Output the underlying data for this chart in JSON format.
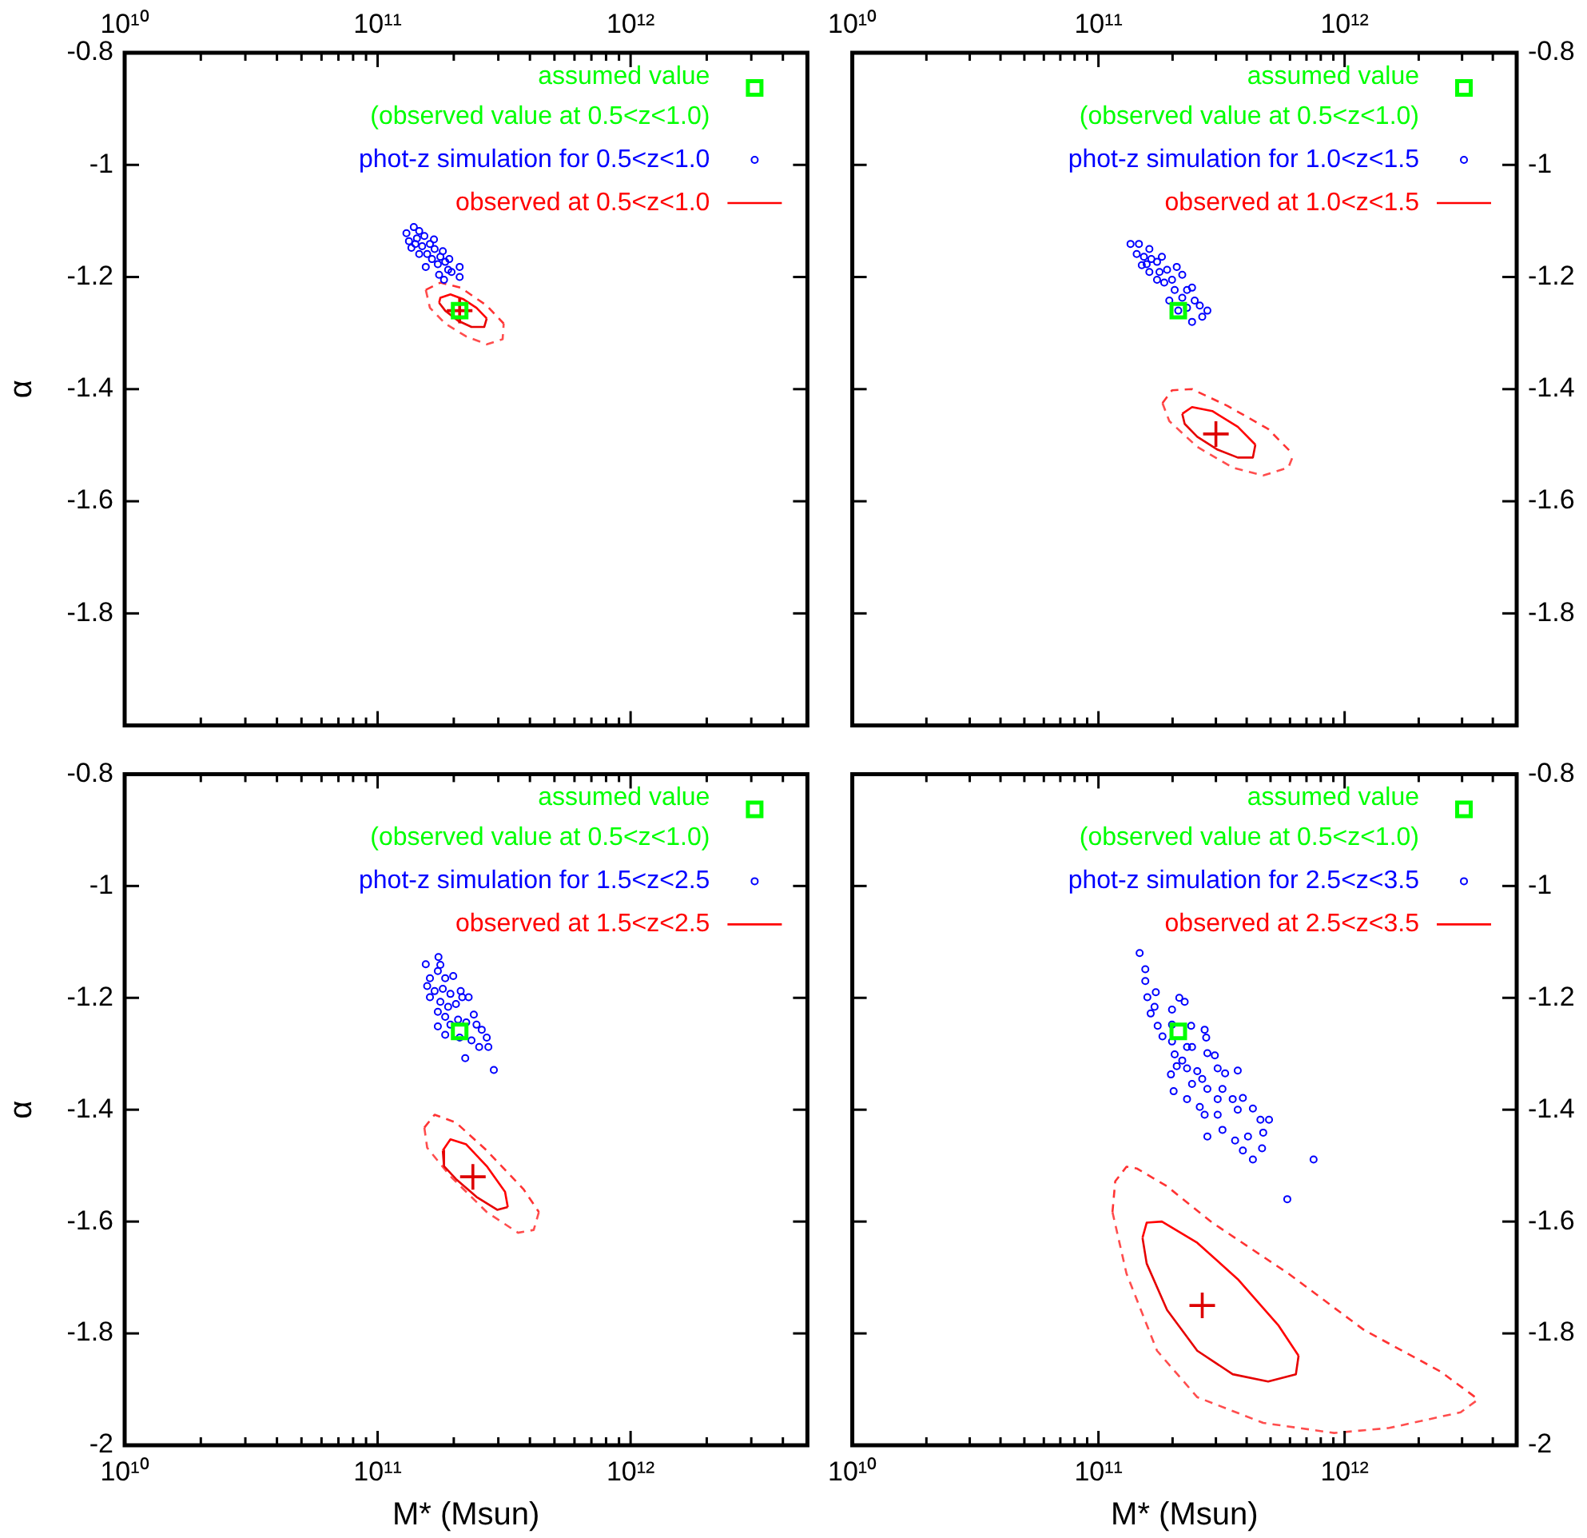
{
  "chart_data": [
    {
      "type": "scatter",
      "ylabel": "α",
      "log": "x",
      "legend": "top right",
      "xlim": [
        10000000000.0,
        5000000000000.0
      ],
      "ylim": [
        -2,
        -0.8
      ],
      "xticks": [
        {
          "value": 10000000000.0,
          "label": "10¹⁰"
        },
        {
          "value": 20000000000.0,
          "label": null
        },
        {
          "value": 30000000000.0,
          "label": null
        },
        {
          "value": 40000000000.0,
          "label": null
        },
        {
          "value": 50000000000.0,
          "label": null
        },
        {
          "value": 60000000000.0,
          "label": null
        },
        {
          "value": 70000000000.0,
          "label": null
        },
        {
          "value": 80000000000.0,
          "label": null
        },
        {
          "value": 90000000000.0,
          "label": null
        },
        {
          "value": 100000000000.0,
          "label": "10¹¹"
        },
        {
          "value": 200000000000.0,
          "label": null
        },
        {
          "value": 300000000000.0,
          "label": null
        },
        {
          "value": 400000000000.0,
          "label": null
        },
        {
          "value": 500000000000.0,
          "label": null
        },
        {
          "value": 600000000000.0,
          "label": null
        },
        {
          "value": 700000000000.0,
          "label": null
        },
        {
          "value": 800000000000.0,
          "label": null
        },
        {
          "value": 900000000000.0,
          "label": null
        },
        {
          "value": 1000000000000.0,
          "label": "10¹²"
        },
        {
          "value": 2000000000000.0,
          "label": null
        },
        {
          "value": 3000000000000.0,
          "label": null
        },
        {
          "value": 4000000000000.0,
          "label": null
        }
      ],
      "yticks": [
        -0.8,
        -1,
        -1.2,
        -1.4,
        -1.6,
        -1.8,
        {
          "value": -2,
          "label": null
        }
      ],
      "series": [
        {
          "name": "assumed value\n(observed value at 0.5<z<1.0)",
          "type": "scatter",
          "marker": "square",
          "color": "#00ff00",
          "x": [
            211000000000.0
          ],
          "values": [
            -1.26
          ]
        },
        {
          "name": "phot-z simulation for 0.5<z<1.0",
          "type": "scatter",
          "marker": "circle",
          "color": "#0000ff",
          "x": [
            130000000000.0,
            139000000000.0,
            146000000000.0,
            133000000000.0,
            143000000000.0,
            153000000000.0,
            150000000000.0,
            161000000000.0,
            136000000000.0,
            157000000000.0,
            168000000000.0,
            164000000000.0,
            177000000000.0,
            173000000000.0,
            181000000000.0,
            185000000000.0,
            190000000000.0,
            183000000000.0,
            196000000000.0,
            211000000000.0,
            211000000000.0,
            146000000000.0,
            155000000000.0,
            175000000000.0,
            192000000000.0,
            167000000000.0,
            141000000000.0
          ],
          "values": [
            -1.122,
            -1.111,
            -1.118,
            -1.136,
            -1.131,
            -1.127,
            -1.145,
            -1.141,
            -1.148,
            -1.159,
            -1.15,
            -1.168,
            -1.164,
            -1.177,
            -1.154,
            -1.173,
            -1.187,
            -1.205,
            -1.191,
            -1.2,
            -1.182,
            -1.159,
            -1.182,
            -1.196,
            -1.168,
            -1.133,
            -1.141
          ]
        },
        {
          "name": "observed at 0.5<z<1.0",
          "type": "line",
          "line_style": "solid",
          "color": "#ff0000",
          "x": [
            175000000000.0,
            177000000000.0,
            194000000000.0,
            219000000000.0,
            246000000000.0,
            270000000000.0
          ],
          "values": [
            -1.246,
            -1.237,
            -1.231,
            -1.24,
            -1.255,
            -1.274
          ]
        },
        {
          "type": "line",
          "line_style": "solid",
          "color": "#e60000",
          "x": [
            175000000000.0,
            185000000000.0,
            208000000000.0,
            235000000000.0,
            264000000000.0,
            270000000000.0
          ],
          "values": [
            -1.246,
            -1.26,
            -1.278,
            -1.289,
            -1.289,
            -1.274
          ]
        },
        {
          "type": "line",
          "line_style": "dashed",
          "color": "#ff3333",
          "x": [
            155000000000.0,
            177000000000.0,
            213000000000.0,
            270000000000.0,
            315000000000.0
          ],
          "values": [
            -1.223,
            -1.21,
            -1.219,
            -1.251,
            -1.283
          ]
        },
        {
          "type": "line",
          "line_style": "dashed",
          "color": "#ff4d4d",
          "x": [
            155000000000.0,
            161000000000.0,
            185000000000.0,
            224000000000.0,
            270000000000.0,
            312000000000.0,
            315000000000.0
          ],
          "values": [
            -1.223,
            -1.255,
            -1.283,
            -1.306,
            -1.32,
            -1.311,
            -1.283
          ]
        },
        {
          "type": "scatter",
          "marker": "cross",
          "color": "#dd0000",
          "x": [
            211000000000.0
          ],
          "values": [
            -1.26
          ]
        }
      ]
    },
    {
      "type": "scatter",
      "log": "x",
      "legend": "top right",
      "xlim": [
        10000000000.0,
        5000000000000.0
      ],
      "ylim": [
        -2,
        -0.8
      ],
      "xticks": [
        {
          "value": 10000000000.0,
          "label": "10¹⁰"
        },
        {
          "value": 20000000000.0,
          "label": null
        },
        {
          "value": 30000000000.0,
          "label": null
        },
        {
          "value": 40000000000.0,
          "label": null
        },
        {
          "value": 50000000000.0,
          "label": null
        },
        {
          "value": 60000000000.0,
          "label": null
        },
        {
          "value": 70000000000.0,
          "label": null
        },
        {
          "value": 80000000000.0,
          "label": null
        },
        {
          "value": 90000000000.0,
          "label": null
        },
        {
          "value": 100000000000.0,
          "label": "10¹¹"
        },
        {
          "value": 200000000000.0,
          "label": null
        },
        {
          "value": 300000000000.0,
          "label": null
        },
        {
          "value": 400000000000.0,
          "label": null
        },
        {
          "value": 500000000000.0,
          "label": null
        },
        {
          "value": 600000000000.0,
          "label": null
        },
        {
          "value": 700000000000.0,
          "label": null
        },
        {
          "value": 800000000000.0,
          "label": null
        },
        {
          "value": 900000000000.0,
          "label": null
        },
        {
          "value": 1000000000000.0,
          "label": "10¹²"
        },
        {
          "value": 2000000000000.0,
          "label": null
        },
        {
          "value": 3000000000000.0,
          "label": null
        },
        {
          "value": 4000000000000.0,
          "label": null
        }
      ],
      "yticks": [
        -0.8,
        -1,
        -1.2,
        -1.4,
        -1.6,
        -1.8,
        {
          "value": -2,
          "label": null
        }
      ],
      "series": [
        {
          "name": "assumed value\n(observed value at 0.5<z<1.0)",
          "type": "scatter",
          "marker": "square",
          "color": "#00ff00",
          "x": [
            211000000000.0
          ],
          "values": [
            -1.26
          ]
        },
        {
          "name": "phot-z simulation for 1.0<z<1.5",
          "type": "scatter",
          "marker": "circle",
          "color": "#0000ff",
          "x": [
            135000000000.0,
            146000000000.0,
            143000000000.0,
            153000000000.0,
            161000000000.0,
            164000000000.0,
            150000000000.0,
            173000000000.0,
            181000000000.0,
            161000000000.0,
            177000000000.0,
            190000000000.0,
            208000000000.0,
            185000000000.0,
            199000000000.0,
            219000000000.0,
            173000000000.0,
            204000000000.0,
            229000000000.0,
            240000000000.0,
            219000000000.0,
            246000000000.0,
            229000000000.0,
            258000000000.0,
            277000000000.0,
            264000000000.0,
            240000000000.0,
            211000000000.0,
            194000000000.0,
            157000000000.0
          ],
          "values": [
            -1.141,
            -1.141,
            -1.159,
            -1.164,
            -1.15,
            -1.168,
            -1.179,
            -1.173,
            -1.164,
            -1.191,
            -1.191,
            -1.187,
            -1.182,
            -1.21,
            -1.205,
            -1.196,
            -1.205,
            -1.223,
            -1.223,
            -1.219,
            -1.237,
            -1.242,
            -1.255,
            -1.251,
            -1.26,
            -1.271,
            -1.28,
            -1.26,
            -1.242,
            -1.177
          ]
        },
        {
          "name": "observed at 1.0<z<1.5",
          "type": "line",
          "line_style": "solid",
          "color": "#ff0000",
          "x": [
            219000000000.0,
            240000000000.0,
            290000000000.0,
            368000000000.0,
            434000000000.0
          ],
          "values": [
            -1.444,
            -1.432,
            -1.439,
            -1.467,
            -1.499
          ]
        },
        {
          "type": "line",
          "line_style": "solid",
          "color": "#e60000",
          "x": [
            219000000000.0,
            224000000000.0,
            252000000000.0,
            305000000000.0,
            368000000000.0,
            424000000000.0,
            434000000000.0
          ],
          "values": [
            -1.444,
            -1.462,
            -1.485,
            -1.508,
            -1.522,
            -1.522,
            -1.499
          ]
        },
        {
          "type": "line",
          "line_style": "dashed",
          "color": "#ff3333",
          "x": [
            182000000000.0,
            199000000000.0,
            240000000000.0,
            335000000000.0,
            489000000000.0,
            620000000000.0
          ],
          "values": [
            -1.425,
            -1.402,
            -1.4,
            -1.43,
            -1.471,
            -1.517
          ]
        },
        {
          "type": "line",
          "line_style": "dashed",
          "color": "#ff4d4d",
          "x": [
            182000000000.0,
            194000000000.0,
            252000000000.0,
            351000000000.0,
            467000000000.0,
            591000000000.0,
            620000000000.0
          ],
          "values": [
            -1.425,
            -1.457,
            -1.503,
            -1.54,
            -1.554,
            -1.54,
            -1.517
          ]
        },
        {
          "type": "scatter",
          "marker": "cross",
          "color": "#dd0000",
          "x": [
            300000000000.0
          ],
          "values": [
            -1.48
          ]
        }
      ]
    },
    {
      "type": "scatter",
      "xlabel": "M* (Msun)",
      "ylabel": "α",
      "log": "x",
      "legend": "top right",
      "xlim": [
        10000000000.0,
        5000000000000.0
      ],
      "ylim": [
        -2,
        -0.8
      ],
      "xticks": [
        {
          "value": 10000000000.0,
          "label": "10¹⁰"
        },
        {
          "value": 20000000000.0,
          "label": null
        },
        {
          "value": 30000000000.0,
          "label": null
        },
        {
          "value": 40000000000.0,
          "label": null
        },
        {
          "value": 50000000000.0,
          "label": null
        },
        {
          "value": 60000000000.0,
          "label": null
        },
        {
          "value": 70000000000.0,
          "label": null
        },
        {
          "value": 80000000000.0,
          "label": null
        },
        {
          "value": 90000000000.0,
          "label": null
        },
        {
          "value": 100000000000.0,
          "label": "10¹¹"
        },
        {
          "value": 200000000000.0,
          "label": null
        },
        {
          "value": 300000000000.0,
          "label": null
        },
        {
          "value": 400000000000.0,
          "label": null
        },
        {
          "value": 500000000000.0,
          "label": null
        },
        {
          "value": 600000000000.0,
          "label": null
        },
        {
          "value": 700000000000.0,
          "label": null
        },
        {
          "value": 800000000000.0,
          "label": null
        },
        {
          "value": 900000000000.0,
          "label": null
        },
        {
          "value": 1000000000000.0,
          "label": "10¹²"
        },
        {
          "value": 2000000000000.0,
          "label": null
        },
        {
          "value": 3000000000000.0,
          "label": null
        },
        {
          "value": 4000000000000.0,
          "label": null
        }
      ],
      "yticks": [
        -0.8,
        -1,
        -1.2,
        -1.4,
        -1.6,
        -1.8,
        -2
      ],
      "series": [
        {
          "name": "assumed value\n(observed value at 0.5<z<1.0)",
          "type": "scatter",
          "marker": "square",
          "color": "#00ff00",
          "x": [
            211000000000.0
          ],
          "values": [
            -1.26
          ]
        },
        {
          "name": "phot-z simulation for 1.5<z<2.5",
          "type": "scatter",
          "marker": "circle",
          "color": "#0000ff",
          "x": [
            155000000000.0,
            174000000000.0,
            177000000000.0,
            173000000000.0,
            161000000000.0,
            185000000000.0,
            199000000000.0,
            157000000000.0,
            168000000000.0,
            181000000000.0,
            194000000000.0,
            213000000000.0,
            216000000000.0,
            229000000000.0,
            161000000000.0,
            177000000000.0,
            190000000000.0,
            204000000000.0,
            240000000000.0,
            173000000000.0,
            185000000000.0,
            173000000000.0,
            194000000000.0,
            208000000000.0,
            224000000000.0,
            246000000000.0,
            258000000000.0,
            270000000000.0,
            235000000000.0,
            252000000000.0,
            274000000000.0,
            222000000000.0,
            288000000000.0,
            211000000000.0,
            185000000000.0
          ],
          "values": [
            -1.14,
            -1.127,
            -1.141,
            -1.152,
            -1.165,
            -1.165,
            -1.161,
            -1.179,
            -1.188,
            -1.184,
            -1.193,
            -1.188,
            -1.199,
            -1.199,
            -1.199,
            -1.207,
            -1.216,
            -1.211,
            -1.23,
            -1.225,
            -1.234,
            -1.251,
            -1.248,
            -1.239,
            -1.244,
            -1.248,
            -1.257,
            -1.271,
            -1.276,
            -1.288,
            -1.288,
            -1.308,
            -1.329,
            -1.271,
            -1.266
          ]
        },
        {
          "name": "observed at 1.5<z<2.5",
          "type": "line",
          "line_style": "solid",
          "color": "#ff0000",
          "x": [
            181000000000.0,
            194000000000.0,
            224000000000.0,
            270000000000.0,
            319000000000.0,
            327000000000.0
          ],
          "values": [
            -1.473,
            -1.453,
            -1.462,
            -1.501,
            -1.547,
            -1.574
          ]
        },
        {
          "type": "line",
          "line_style": "solid",
          "color": "#e60000",
          "x": [
            181000000000.0,
            183000000000.0,
            204000000000.0,
            246000000000.0,
            297000000000.0,
            327000000000.0
          ],
          "values": [
            -1.473,
            -1.501,
            -1.524,
            -1.556,
            -1.579,
            -1.574
          ]
        },
        {
          "type": "line",
          "line_style": "dashed",
          "color": "#ff3333",
          "x": [
            153000000000.0,
            168000000000.0,
            204000000000.0,
            270000000000.0,
            377000000000.0,
            434000000000.0
          ],
          "values": [
            -1.432,
            -1.409,
            -1.423,
            -1.473,
            -1.542,
            -1.583
          ]
        },
        {
          "type": "line",
          "line_style": "dashed",
          "color": "#ff4d4d",
          "x": [
            153000000000.0,
            157000000000.0,
            194000000000.0,
            270000000000.0,
            359000000000.0,
            414000000000.0,
            434000000000.0
          ],
          "values": [
            -1.432,
            -1.468,
            -1.519,
            -1.583,
            -1.62,
            -1.615,
            -1.583
          ]
        },
        {
          "type": "scatter",
          "marker": "cross",
          "color": "#dd0000",
          "x": [
            238000000000.0
          ],
          "values": [
            -1.52
          ]
        }
      ]
    },
    {
      "type": "scatter",
      "xlabel": "M* (Msun)",
      "log": "x",
      "legend": "top right",
      "xlim": [
        10000000000.0,
        5000000000000.0
      ],
      "ylim": [
        -2,
        -0.8
      ],
      "xticks": [
        {
          "value": 10000000000.0,
          "label": "10¹⁰"
        },
        {
          "value": 20000000000.0,
          "label": null
        },
        {
          "value": 30000000000.0,
          "label": null
        },
        {
          "value": 40000000000.0,
          "label": null
        },
        {
          "value": 50000000000.0,
          "label": null
        },
        {
          "value": 60000000000.0,
          "label": null
        },
        {
          "value": 70000000000.0,
          "label": null
        },
        {
          "value": 80000000000.0,
          "label": null
        },
        {
          "value": 90000000000.0,
          "label": null
        },
        {
          "value": 100000000000.0,
          "label": "10¹¹"
        },
        {
          "value": 200000000000.0,
          "label": null
        },
        {
          "value": 300000000000.0,
          "label": null
        },
        {
          "value": 400000000000.0,
          "label": null
        },
        {
          "value": 500000000000.0,
          "label": null
        },
        {
          "value": 600000000000.0,
          "label": null
        },
        {
          "value": 700000000000.0,
          "label": null
        },
        {
          "value": 800000000000.0,
          "label": null
        },
        {
          "value": 900000000000.0,
          "label": null
        },
        {
          "value": 1000000000000.0,
          "label": "10¹²"
        },
        {
          "value": 2000000000000.0,
          "label": null
        },
        {
          "value": 3000000000000.0,
          "label": null
        },
        {
          "value": 4000000000000.0,
          "label": null
        }
      ],
      "yticks": [
        -0.8,
        -1,
        -1.2,
        -1.4,
        -1.6,
        -1.8,
        -2
      ],
      "series": [
        {
          "name": "assumed value\n(observed value at 0.5<z<1.0)",
          "type": "scatter",
          "marker": "square",
          "color": "#00ff00",
          "x": [
            211000000000.0
          ],
          "values": [
            -1.26
          ]
        },
        {
          "name": "phot-z simulation for 2.5<z<3.5",
          "type": "scatter",
          "marker": "circle",
          "color": "#0000ff",
          "x": [
            147000000000.0,
            155000000000.0,
            155000000000.0,
            158000000000.0,
            163000000000.0,
            171000000000.0,
            169000000000.0,
            174000000000.0,
            182000000000.0,
            199000000000.0,
            199000000000.0,
            213000000000.0,
            224000000000.0,
            238000000000.0,
            229000000000.0,
            240000000000.0,
            270000000000.0,
            274000000000.0,
            199000000000.0,
            204000000000.0,
            219000000000.0,
            208000000000.0,
            197000000000.0,
            229000000000.0,
            252000000000.0,
            277000000000.0,
            297000000000.0,
            264000000000.0,
            305000000000.0,
            327000000000.0,
            368000000000.0,
            240000000000.0,
            277000000000.0,
            319000000000.0,
            202000000000.0,
            229000000000.0,
            258000000000.0,
            305000000000.0,
            351000000000.0,
            386000000000.0,
            270000000000.0,
            305000000000.0,
            368000000000.0,
            424000000000.0,
            455000000000.0,
            493000000000.0,
            277000000000.0,
            319000000000.0,
            359000000000.0,
            405000000000.0,
            467000000000.0,
            386000000000.0,
            424000000000.0,
            462000000000.0,
            748000000000.0,
            585000000000.0
          ],
          "values": [
            -1.12,
            -1.149,
            -1.17,
            -1.199,
            -1.228,
            -1.19,
            -1.216,
            -1.25,
            -1.269,
            -1.248,
            -1.221,
            -1.2,
            -1.207,
            -1.25,
            -1.288,
            -1.288,
            -1.257,
            -1.271,
            -1.278,
            -1.301,
            -1.312,
            -1.322,
            -1.337,
            -1.326,
            -1.331,
            -1.299,
            -1.303,
            -1.345,
            -1.326,
            -1.335,
            -1.33,
            -1.354,
            -1.363,
            -1.363,
            -1.367,
            -1.381,
            -1.395,
            -1.381,
            -1.381,
            -1.379,
            -1.409,
            -1.409,
            -1.4,
            -1.398,
            -1.418,
            -1.418,
            -1.448,
            -1.436,
            -1.455,
            -1.448,
            -1.441,
            -1.473,
            -1.489,
            -1.469,
            -1.489,
            -1.56
          ]
        },
        {
          "name": "observed at 2.5<z<3.5",
          "type": "line",
          "line_style": "solid",
          "color": "#ff0000",
          "x": [
            151000000000.0,
            157000000000.0,
            181000000000.0,
            252000000000.0,
            368000000000.0,
            537000000000.0,
            650000000000.0
          ],
          "values": [
            -1.629,
            -1.602,
            -1.6,
            -1.638,
            -1.703,
            -1.785,
            -1.84
          ]
        },
        {
          "type": "line",
          "line_style": "solid",
          "color": "#e60000",
          "x": [
            151000000000.0,
            157000000000.0,
            190000000000.0,
            252000000000.0,
            351000000000.0,
            489000000000.0,
            634000000000.0,
            650000000000.0
          ],
          "values": [
            -1.629,
            -1.675,
            -1.758,
            -1.831,
            -1.873,
            -1.886,
            -1.873,
            -1.84
          ]
        },
        {
          "type": "line",
          "line_style": "dashed",
          "color": "#ff3333",
          "x": [
            114000000000.0,
            117000000000.0,
            130000000000.0,
            143000000000.0,
            190000000000.0,
            290000000000.0,
            591000000000.0,
            1200000000000.0,
            2450000000000.0,
            3490000000000.0
          ],
          "values": [
            -1.583,
            -1.528,
            -1.502,
            -1.505,
            -1.537,
            -1.602,
            -1.693,
            -1.794,
            -1.868,
            -1.918
          ]
        },
        {
          "type": "line",
          "line_style": "dashed",
          "color": "#ff4d4d",
          "x": [
            114000000000.0,
            130000000000.0,
            173000000000.0,
            252000000000.0,
            467000000000.0,
            906000000000.0,
            1520000000000.0,
            2960000000000.0,
            3490000000000.0
          ],
          "values": [
            -1.583,
            -1.693,
            -1.831,
            -1.914,
            -1.96,
            -1.978,
            -1.969,
            -1.941,
            -1.918
          ]
        },
        {
          "type": "scatter",
          "marker": "cross",
          "color": "#dd0000",
          "x": [
            264000000000.0
          ],
          "values": [
            -1.75
          ]
        }
      ]
    }
  ]
}
